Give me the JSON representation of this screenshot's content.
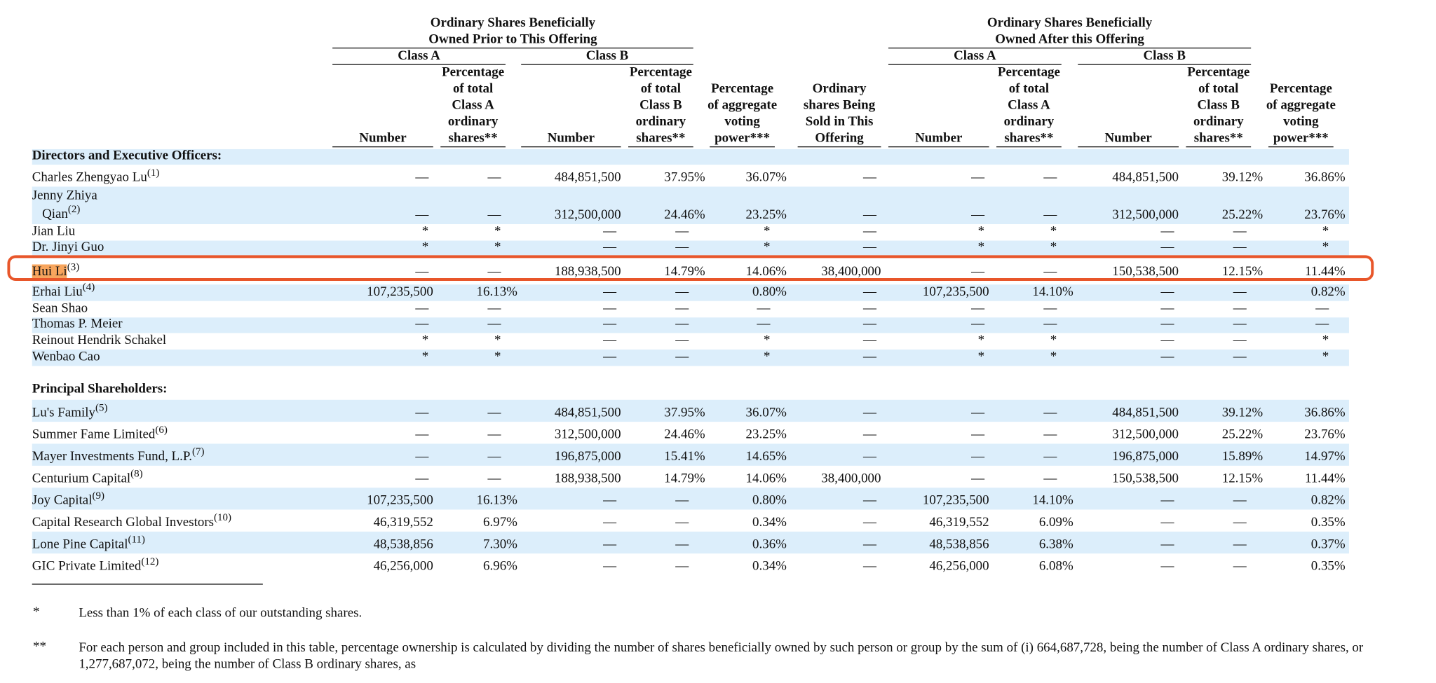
{
  "table": {
    "group_headers": [
      "Ordinary Shares Beneficially Owned Prior to This Offering",
      "Ordinary Shares Beneficially Owned After this Offering"
    ],
    "class_headers": [
      "Class A",
      "Class B",
      "Class A",
      "Class B"
    ],
    "columns": [
      "Number",
      "Percentage of total Class A ordinary shares**",
      "Number",
      "Percentage of total Class B ordinary shares**",
      "Percentage of aggregate voting power***",
      "Ordinary shares Being Sold in This Offering",
      "Number",
      "Percentage of total Class A ordinary shares**",
      "Number",
      "Percentage of total Class B ordinary shares**",
      "Percentage of aggregate voting power***"
    ],
    "sections": [
      {
        "title": "Directors and Executive Officers:",
        "rows": [
          {
            "name": "Charles Zhengyao Lu",
            "note": "(1)",
            "cells": [
              "—",
              "—",
              "484,851,500",
              "37.95%",
              "36.07%",
              "—",
              "—",
              "—",
              "484,851,500",
              "39.12%",
              "36.86%"
            ]
          },
          {
            "name": "Jenny Zhiya Qian",
            "note": "(2)",
            "cells": [
              "—",
              "—",
              "312,500,000",
              "24.46%",
              "23.25%",
              "—",
              "—",
              "—",
              "312,500,000",
              "25.22%",
              "23.76%"
            ]
          },
          {
            "name": "Jian Liu",
            "cells": [
              "*",
              "*",
              "—",
              "—",
              "*",
              "—",
              "*",
              "*",
              "—",
              "—",
              "*"
            ]
          },
          {
            "name": "Dr. Jinyi Guo",
            "cells": [
              "*",
              "*",
              "—",
              "—",
              "*",
              "—",
              "*",
              "*",
              "—",
              "—",
              "*"
            ]
          },
          {
            "name": "Hui Li",
            "note": "(3)",
            "cells": [
              "—",
              "—",
              "188,938,500",
              "14.79%",
              "14.06%",
              "38,400,000",
              "—",
              "—",
              "150,538,500",
              "12.15%",
              "11.44%"
            ]
          },
          {
            "name": "Erhai Liu",
            "note": "(4)",
            "cells": [
              "107,235,500",
              "16.13%",
              "—",
              "—",
              "0.80%",
              "—",
              "107,235,500",
              "14.10%",
              "—",
              "—",
              "0.82%"
            ]
          },
          {
            "name": "Sean Shao",
            "cells": [
              "—",
              "—",
              "—",
              "—",
              "—",
              "—",
              "—",
              "—",
              "—",
              "—",
              "—"
            ]
          },
          {
            "name": "Thomas P. Meier",
            "cells": [
              "—",
              "—",
              "—",
              "—",
              "—",
              "—",
              "—",
              "—",
              "—",
              "—",
              "—"
            ]
          },
          {
            "name": "Reinout Hendrik Schakel",
            "cells": [
              "*",
              "*",
              "—",
              "—",
              "*",
              "—",
              "*",
              "*",
              "—",
              "—",
              "*"
            ]
          },
          {
            "name": "Wenbao Cao",
            "cells": [
              "*",
              "*",
              "—",
              "—",
              "*",
              "—",
              "*",
              "*",
              "—",
              "—",
              "*"
            ]
          }
        ]
      },
      {
        "title": "Principal Shareholders:",
        "rows": [
          {
            "name": "Lu's Family",
            "note": "(5)",
            "cells": [
              "—",
              "—",
              "484,851,500",
              "37.95%",
              "36.07%",
              "—",
              "—",
              "—",
              "484,851,500",
              "39.12%",
              "36.86%"
            ]
          },
          {
            "name": "Summer Fame Limited",
            "note": "(6)",
            "cells": [
              "—",
              "—",
              "312,500,000",
              "24.46%",
              "23.25%",
              "—",
              "—",
              "—",
              "312,500,000",
              "25.22%",
              "23.76%"
            ]
          },
          {
            "name": "Mayer Investments Fund, L.P.",
            "note": "(7)",
            "cells": [
              "—",
              "—",
              "196,875,000",
              "15.41%",
              "14.65%",
              "—",
              "—",
              "—",
              "196,875,000",
              "15.89%",
              "14.97%"
            ]
          },
          {
            "name": "Centurium Capital",
            "note": "(8)",
            "cells": [
              "—",
              "—",
              "188,938,500",
              "14.79%",
              "14.06%",
              "38,400,000",
              "—",
              "—",
              "150,538,500",
              "12.15%",
              "11.44%"
            ]
          },
          {
            "name": "Joy Capital",
            "note": "(9)",
            "cells": [
              "107,235,500",
              "16.13%",
              "—",
              "—",
              "0.80%",
              "—",
              "107,235,500",
              "14.10%",
              "—",
              "—",
              "0.82%"
            ]
          },
          {
            "name": "Capital Research Global Investors",
            "note": "(10)",
            "cells": [
              "46,319,552",
              "6.97%",
              "—",
              "—",
              "0.34%",
              "—",
              "46,319,552",
              "6.09%",
              "—",
              "—",
              "0.35%"
            ]
          },
          {
            "name": "Lone Pine Capital",
            "note": "(11)",
            "cells": [
              "48,538,856",
              "7.30%",
              "—",
              "—",
              "0.36%",
              "—",
              "48,538,856",
              "6.38%",
              "—",
              "—",
              "0.37%"
            ]
          },
          {
            "name": "GIC Private Limited",
            "note": "(12)",
            "cells": [
              "46,256,000",
              "6.96%",
              "—",
              "—",
              "0.34%",
              "—",
              "46,256,000",
              "6.08%",
              "—",
              "—",
              "0.35%"
            ]
          }
        ]
      }
    ]
  },
  "footnotes": [
    {
      "marker": "*",
      "text": "Less than 1% of each class of our outstanding shares."
    },
    {
      "marker": "**",
      "text": "For each person and group included in this table, percentage ownership is calculated by dividing the number of shares beneficially owned by such person or group by the sum of (i) 664,687,728, being the number of Class A ordinary shares, or 1,277,687,072, being the number of Class B ordinary shares, as"
    }
  ]
}
